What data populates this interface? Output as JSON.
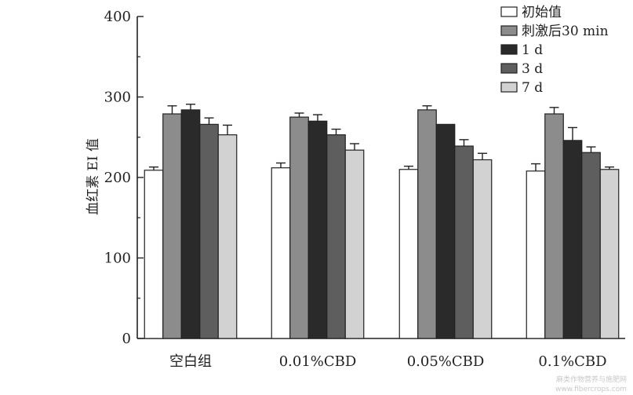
{
  "chart_data": {
    "type": "bar",
    "title": "",
    "xlabel": "",
    "ylabel": "血红素 EI 值",
    "ylim": [
      0,
      400
    ],
    "yticks": [
      "0",
      "100",
      "200",
      "300",
      "400"
    ],
    "categories": [
      "空白组",
      "0.01%CBD",
      "0.05%CBD",
      "0.1%CBD"
    ],
    "grid": false,
    "legend_position": "top-right",
    "series": [
      {
        "name": "初始值",
        "color": "#ffffff",
        "values": [
          209,
          212,
          210,
          208
        ],
        "errors": [
          4,
          6,
          4,
          9
        ]
      },
      {
        "name": "刺激后30 min",
        "color": "#8c8c8c",
        "values": [
          279,
          275,
          284,
          279
        ],
        "errors": [
          10,
          5,
          5,
          8
        ]
      },
      {
        "name": "1 d",
        "color": "#2a2a2a",
        "values": [
          284,
          270,
          266,
          246
        ],
        "errors": [
          7,
          8,
          0,
          16
        ]
      },
      {
        "name": "3 d",
        "color": "#5e5e5e",
        "values": [
          266,
          253,
          239,
          231
        ],
        "errors": [
          8,
          7,
          8,
          7
        ]
      },
      {
        "name": "7 d",
        "color": "#d2d2d2",
        "values": [
          253,
          234,
          222,
          210
        ],
        "errors": [
          12,
          8,
          8,
          3
        ]
      }
    ]
  },
  "watermark": {
    "line1": "麻类作物营养与施肥网",
    "line2": "www.fibercrops.com"
  }
}
